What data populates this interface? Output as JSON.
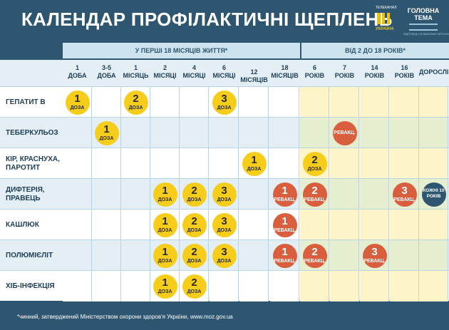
{
  "header": {
    "title": "КАЛЕНДАР ПРОФІЛАКТИЧНІ ЩЕПЛЕНЬ",
    "logo1_top": "ТЕЛЕКАНАЛ",
    "logo1_bottom": "УКРАЇНА",
    "logo2_line1": "ГОЛОВНА",
    "logo2_line2": "ТЕМА",
    "logo2_tag": "ВІДПОВІДІ НА ВАЖЛИВІ ПИТАННЯ"
  },
  "sections": {
    "first": "У ПЕРШІ 18 МІСЯЦІВ ЖИТТЯ*",
    "second": "ВІД 2 ДО 18 РОКІВ*"
  },
  "columns": [
    {
      "l1": "1",
      "l2": "ДОБА"
    },
    {
      "l1": "3-5",
      "l2": "ДОБА"
    },
    {
      "l1": "1",
      "l2": "МІСЯЦЬ"
    },
    {
      "l1": "2",
      "l2": "МІСЯЦІ"
    },
    {
      "l1": "4",
      "l2": "МІСЯЦІ"
    },
    {
      "l1": "6",
      "l2": "МІСЯЦІ"
    },
    {
      "l1": "",
      "l2": "12 МІСЯЦІВ"
    },
    {
      "l1": "18",
      "l2": "МІСЯЦІВ"
    },
    {
      "l1": "6",
      "l2": "РОКІВ"
    },
    {
      "l1": "7",
      "l2": "РОКІВ"
    },
    {
      "l1": "14",
      "l2": "РОКІВ"
    },
    {
      "l1": "16",
      "l2": "РОКІВ"
    },
    {
      "l1": "",
      "l2": "ДОРОСЛІ"
    }
  ],
  "rows": [
    {
      "label": "ГЕПАТИТ В",
      "cells": [
        {
          "col": 0,
          "kind": "y",
          "num": "1",
          "sub": "ДОЗА"
        },
        {
          "col": 2,
          "kind": "y",
          "num": "2",
          "sub": "ДОЗА"
        },
        {
          "col": 5,
          "kind": "y",
          "num": "3",
          "sub": "ДОЗА"
        }
      ]
    },
    {
      "label": "ТЕБЕРКУЛЬОЗ",
      "cells": [
        {
          "col": 1,
          "kind": "y",
          "num": "1",
          "sub": "ДОЗА"
        },
        {
          "col": 9,
          "kind": "r",
          "num": "",
          "sub": "РЕВАКЦ."
        }
      ]
    },
    {
      "label": "КІР, КРАСНУХА, ПАРОТИТ",
      "cells": [
        {
          "col": 6,
          "kind": "y",
          "num": "1",
          "sub": "ДОЗА"
        },
        {
          "col": 8,
          "kind": "y",
          "num": "2",
          "sub": "ДОЗА"
        }
      ]
    },
    {
      "label": "ДИФТЕРІЯ, ПРАВЕЦЬ",
      "cells": [
        {
          "col": 3,
          "kind": "y",
          "num": "1",
          "sub": "ДОЗА"
        },
        {
          "col": 4,
          "kind": "y",
          "num": "2",
          "sub": "ДОЗА"
        },
        {
          "col": 5,
          "kind": "y",
          "num": "3",
          "sub": "ДОЗА"
        },
        {
          "col": 7,
          "kind": "r",
          "num": "1",
          "sub": "РЕВАКЦ."
        },
        {
          "col": 8,
          "kind": "r",
          "num": "2",
          "sub": "РЕВАКЦ."
        },
        {
          "col": 11,
          "kind": "r",
          "num": "3",
          "sub": "РЕВАКЦ."
        },
        {
          "col": 12,
          "kind": "b",
          "num": "",
          "sub": "КОЖНІ 10 РОКІВ"
        }
      ]
    },
    {
      "label": "КАШЛЮК",
      "cells": [
        {
          "col": 3,
          "kind": "y",
          "num": "1",
          "sub": "ДОЗА"
        },
        {
          "col": 4,
          "kind": "y",
          "num": "2",
          "sub": "ДОЗА"
        },
        {
          "col": 5,
          "kind": "y",
          "num": "3",
          "sub": "ДОЗА"
        },
        {
          "col": 7,
          "kind": "r",
          "num": "1",
          "sub": "РЕВАКЦ."
        }
      ]
    },
    {
      "label": "ПОЛЮМІЄЛІТ",
      "cells": [
        {
          "col": 3,
          "kind": "y",
          "num": "1",
          "sub": "ДОЗА"
        },
        {
          "col": 4,
          "kind": "y",
          "num": "2",
          "sub": "ДОЗА"
        },
        {
          "col": 5,
          "kind": "y",
          "num": "3",
          "sub": "ДОЗА"
        },
        {
          "col": 7,
          "kind": "r",
          "num": "1",
          "sub": "РЕВАКЦ."
        },
        {
          "col": 8,
          "kind": "r",
          "num": "2",
          "sub": "РЕВАКЦ."
        },
        {
          "col": 10,
          "kind": "r",
          "num": "3",
          "sub": "РЕВАКЦ."
        }
      ]
    },
    {
      "label": "ХІБ-ІНФЕКЦІЯ",
      "cells": [
        {
          "col": 3,
          "kind": "y",
          "num": "1",
          "sub": "ДОЗА"
        },
        {
          "col": 4,
          "kind": "y",
          "num": "2",
          "sub": "ДОЗА"
        }
      ]
    }
  ],
  "footer": "*чинний, затверджений Міністерством охорони здоров'я України, www.moz.gov.ua",
  "colors": {
    "navy": "#2e5670",
    "light_blue": "#e3eff5",
    "white": "#ffffff",
    "cream": "#fdf4c8",
    "yellow": "#f5cd1a",
    "red": "#d85e3e"
  }
}
